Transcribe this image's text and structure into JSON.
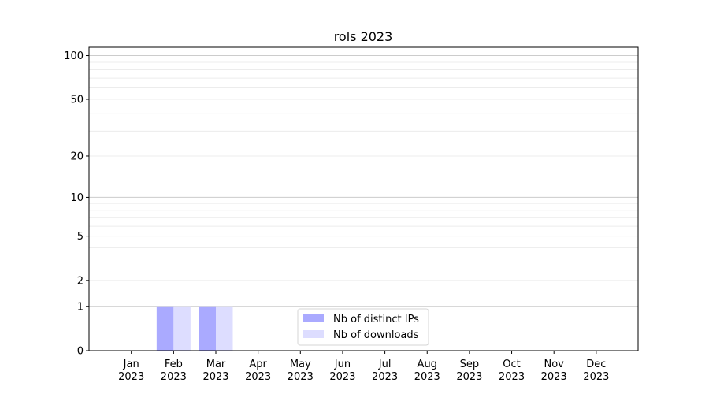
{
  "chart_data": {
    "type": "bar",
    "title": "rols 2023",
    "xlabel": "",
    "ylabel": "",
    "y_scale": "log(1+y)",
    "ylim": [
      0,
      114
    ],
    "y_ticks": [
      0,
      1,
      2,
      5,
      10,
      20,
      50,
      100
    ],
    "grid": true,
    "legend_position": "bottom-center",
    "categories": [
      "Jan\n2023",
      "Feb\n2023",
      "Mar\n2023",
      "Apr\n2023",
      "May\n2023",
      "Jun\n2023",
      "Jul\n2023",
      "Aug\n2023",
      "Sep\n2023",
      "Oct\n2023",
      "Nov\n2023",
      "Dec\n2023"
    ],
    "series": [
      {
        "name": "Nb of distinct IPs",
        "color": "#aaaaff",
        "values": [
          0,
          1,
          1,
          0,
          0,
          0,
          0,
          0,
          0,
          0,
          0,
          0
        ]
      },
      {
        "name": "Nb of downloads",
        "color": "#ddddff",
        "values": [
          0,
          1,
          1,
          0,
          0,
          0,
          0,
          0,
          0,
          0,
          0,
          0
        ]
      }
    ]
  }
}
